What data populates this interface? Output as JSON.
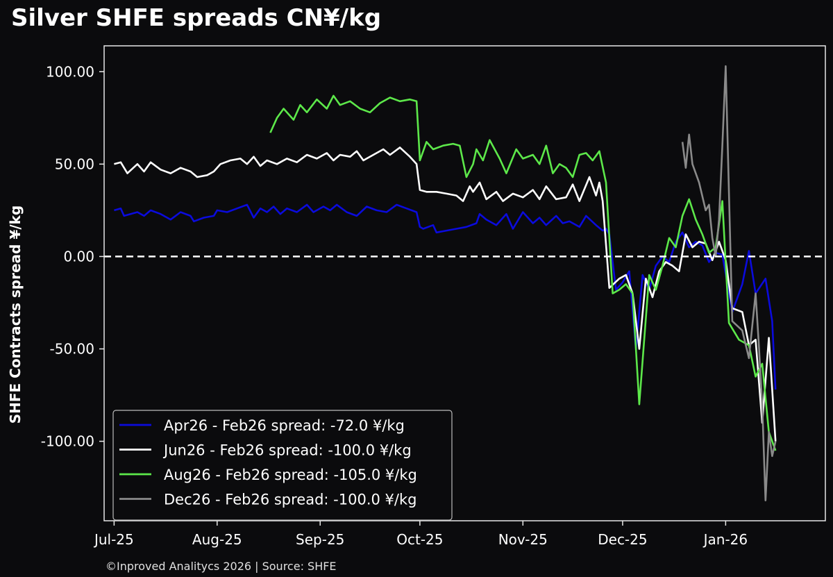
{
  "chart_data": {
    "type": "line",
    "title": "Silver SHFE spreads CN¥/kg",
    "ylabel": "SHFE Contracts spread ¥/kg",
    "xlabel": "",
    "source": "©Inproved Analitycs 2026 | Source: SHFE",
    "x_range": [
      "2025-06-28",
      "2026-01-31"
    ],
    "ylim": [
      -143,
      114
    ],
    "x_ticks": [
      {
        "date": "2025-07-01",
        "label": "Jul-25"
      },
      {
        "date": "2025-08-01",
        "label": "Aug-25"
      },
      {
        "date": "2025-09-01",
        "label": "Sep-25"
      },
      {
        "date": "2025-10-01",
        "label": "Oct-25"
      },
      {
        "date": "2025-11-01",
        "label": "Nov-25"
      },
      {
        "date": "2025-12-01",
        "label": "Dec-25"
      },
      {
        "date": "2026-01-01",
        "label": "Jan-26"
      }
    ],
    "y_ticks": [
      {
        "value": 100,
        "label": "100.00"
      },
      {
        "value": 50,
        "label": "50.00"
      },
      {
        "value": 0,
        "label": "0.00"
      },
      {
        "value": -50,
        "label": "-50.00"
      },
      {
        "value": -100,
        "label": "-100.00"
      }
    ],
    "zero_line": true,
    "grid": false,
    "legend_position": "bottom-left",
    "colors": {
      "background": "#0b0b0d",
      "axes": "#e8e8e8"
    },
    "series": [
      {
        "name": "Apr26 - Feb26 spread: -72.0 ¥/kg",
        "color": "#0b0bdc",
        "points": [
          [
            "2025-07-01",
            25
          ],
          [
            "2025-07-03",
            26
          ],
          [
            "2025-07-04",
            22
          ],
          [
            "2025-07-08",
            24
          ],
          [
            "2025-07-10",
            22
          ],
          [
            "2025-07-12",
            25
          ],
          [
            "2025-07-15",
            23
          ],
          [
            "2025-07-18",
            20
          ],
          [
            "2025-07-21",
            24
          ],
          [
            "2025-07-24",
            22
          ],
          [
            "2025-07-25",
            19
          ],
          [
            "2025-07-28",
            21
          ],
          [
            "2025-07-31",
            22
          ],
          [
            "2025-08-01",
            25
          ],
          [
            "2025-08-04",
            24
          ],
          [
            "2025-08-07",
            26
          ],
          [
            "2025-08-10",
            28
          ],
          [
            "2025-08-12",
            21
          ],
          [
            "2025-08-14",
            26
          ],
          [
            "2025-08-16",
            24
          ],
          [
            "2025-08-18",
            27
          ],
          [
            "2025-08-20",
            23
          ],
          [
            "2025-08-22",
            26
          ],
          [
            "2025-08-25",
            24
          ],
          [
            "2025-08-28",
            28
          ],
          [
            "2025-08-30",
            24
          ],
          [
            "2025-09-02",
            27
          ],
          [
            "2025-09-04",
            25
          ],
          [
            "2025-09-06",
            28
          ],
          [
            "2025-09-09",
            24
          ],
          [
            "2025-09-12",
            22
          ],
          [
            "2025-09-15",
            27
          ],
          [
            "2025-09-18",
            25
          ],
          [
            "2025-09-21",
            24
          ],
          [
            "2025-09-24",
            28
          ],
          [
            "2025-09-27",
            26
          ],
          [
            "2025-09-30",
            24
          ],
          [
            "2025-10-01",
            16
          ],
          [
            "2025-10-02",
            15
          ],
          [
            "2025-10-05",
            17
          ],
          [
            "2025-10-06",
            13
          ],
          [
            "2025-10-09",
            14
          ],
          [
            "2025-10-12",
            15
          ],
          [
            "2025-10-15",
            16
          ],
          [
            "2025-10-18",
            18
          ],
          [
            "2025-10-19",
            23
          ],
          [
            "2025-10-21",
            20
          ],
          [
            "2025-10-24",
            17
          ],
          [
            "2025-10-27",
            23
          ],
          [
            "2025-10-29",
            15
          ],
          [
            "2025-11-01",
            24
          ],
          [
            "2025-11-04",
            18
          ],
          [
            "2025-11-06",
            21
          ],
          [
            "2025-11-08",
            17
          ],
          [
            "2025-11-11",
            22
          ],
          [
            "2025-11-13",
            18
          ],
          [
            "2025-11-15",
            19
          ],
          [
            "2025-11-18",
            16
          ],
          [
            "2025-11-20",
            22
          ],
          [
            "2025-11-23",
            17
          ],
          [
            "2025-11-25",
            14
          ],
          [
            "2025-11-26",
            15
          ],
          [
            "2025-11-27",
            12
          ],
          [
            "2025-11-29",
            -18
          ],
          [
            "2025-12-01",
            -14
          ],
          [
            "2025-12-03",
            -8
          ],
          [
            "2025-12-05",
            -50
          ],
          [
            "2025-12-07",
            -10
          ],
          [
            "2025-12-09",
            -18
          ],
          [
            "2025-12-11",
            -5
          ],
          [
            "2025-12-13",
            0
          ],
          [
            "2025-12-15",
            -3
          ],
          [
            "2025-12-17",
            8
          ],
          [
            "2025-12-19",
            13
          ],
          [
            "2025-12-21",
            5
          ],
          [
            "2025-12-23",
            8
          ],
          [
            "2025-12-25",
            6
          ],
          [
            "2025-12-27",
            -3
          ],
          [
            "2025-12-29",
            2
          ],
          [
            "2025-12-31",
            1
          ],
          [
            "2026-01-03",
            -30
          ],
          [
            "2026-01-06",
            -15
          ],
          [
            "2026-01-08",
            3
          ],
          [
            "2026-01-10",
            -20
          ],
          [
            "2026-01-13",
            -12
          ],
          [
            "2026-01-15",
            -35
          ],
          [
            "2026-01-16",
            -72
          ]
        ]
      },
      {
        "name": "Jun26 - Feb26 spread: -100.0 ¥/kg",
        "color": "#ffffff",
        "points": [
          [
            "2025-07-01",
            50
          ],
          [
            "2025-07-03",
            51
          ],
          [
            "2025-07-05",
            45
          ],
          [
            "2025-07-08",
            50
          ],
          [
            "2025-07-10",
            46
          ],
          [
            "2025-07-12",
            51
          ],
          [
            "2025-07-15",
            47
          ],
          [
            "2025-07-18",
            45
          ],
          [
            "2025-07-21",
            48
          ],
          [
            "2025-07-24",
            46
          ],
          [
            "2025-07-26",
            43
          ],
          [
            "2025-07-29",
            44
          ],
          [
            "2025-07-31",
            46
          ],
          [
            "2025-08-02",
            50
          ],
          [
            "2025-08-05",
            52
          ],
          [
            "2025-08-08",
            53
          ],
          [
            "2025-08-10",
            50
          ],
          [
            "2025-08-12",
            54
          ],
          [
            "2025-08-14",
            49
          ],
          [
            "2025-08-16",
            52
          ],
          [
            "2025-08-19",
            50
          ],
          [
            "2025-08-22",
            53
          ],
          [
            "2025-08-25",
            51
          ],
          [
            "2025-08-28",
            55
          ],
          [
            "2025-08-31",
            53
          ],
          [
            "2025-09-03",
            56
          ],
          [
            "2025-09-05",
            52
          ],
          [
            "2025-09-07",
            55
          ],
          [
            "2025-09-10",
            54
          ],
          [
            "2025-09-12",
            57
          ],
          [
            "2025-09-14",
            52
          ],
          [
            "2025-09-17",
            55
          ],
          [
            "2025-09-20",
            58
          ],
          [
            "2025-09-22",
            55
          ],
          [
            "2025-09-25",
            59
          ],
          [
            "2025-09-28",
            54
          ],
          [
            "2025-09-30",
            50
          ],
          [
            "2025-10-01",
            36
          ],
          [
            "2025-10-03",
            35
          ],
          [
            "2025-10-06",
            35
          ],
          [
            "2025-10-09",
            34
          ],
          [
            "2025-10-12",
            33
          ],
          [
            "2025-10-14",
            30
          ],
          [
            "2025-10-16",
            38
          ],
          [
            "2025-10-17",
            35
          ],
          [
            "2025-10-19",
            40
          ],
          [
            "2025-10-21",
            31
          ],
          [
            "2025-10-24",
            35
          ],
          [
            "2025-10-26",
            30
          ],
          [
            "2025-10-29",
            34
          ],
          [
            "2025-11-01",
            32
          ],
          [
            "2025-11-04",
            36
          ],
          [
            "2025-11-06",
            31
          ],
          [
            "2025-11-08",
            38
          ],
          [
            "2025-11-11",
            31
          ],
          [
            "2025-11-14",
            32
          ],
          [
            "2025-11-16",
            39
          ],
          [
            "2025-11-18",
            30
          ],
          [
            "2025-11-21",
            43
          ],
          [
            "2025-11-23",
            33
          ],
          [
            "2025-11-24",
            40
          ],
          [
            "2025-11-25",
            30
          ],
          [
            "2025-11-27",
            -17
          ],
          [
            "2025-11-30",
            -12
          ],
          [
            "2025-12-02",
            -10
          ],
          [
            "2025-12-04",
            -20
          ],
          [
            "2025-12-06",
            -50
          ],
          [
            "2025-12-08",
            -12
          ],
          [
            "2025-12-10",
            -22
          ],
          [
            "2025-12-12",
            -8
          ],
          [
            "2025-12-14",
            -3
          ],
          [
            "2025-12-16",
            -5
          ],
          [
            "2025-12-18",
            -8
          ],
          [
            "2025-12-20",
            12
          ],
          [
            "2025-12-22",
            5
          ],
          [
            "2025-12-24",
            8
          ],
          [
            "2025-12-26",
            7
          ],
          [
            "2025-12-28",
            -2
          ],
          [
            "2025-12-30",
            8
          ],
          [
            "2026-01-01",
            -2
          ],
          [
            "2026-01-03",
            -28
          ],
          [
            "2026-01-06",
            -30
          ],
          [
            "2026-01-08",
            -48
          ],
          [
            "2026-01-10",
            -45
          ],
          [
            "2026-01-12",
            -90
          ],
          [
            "2026-01-14",
            -44
          ],
          [
            "2026-01-16",
            -100
          ]
        ]
      },
      {
        "name": "Aug26 - Feb26 spread: -105.0 ¥/kg",
        "color": "#5de84a",
        "points": [
          [
            "2025-08-17",
            67
          ],
          [
            "2025-08-19",
            75
          ],
          [
            "2025-08-21",
            80
          ],
          [
            "2025-08-24",
            74
          ],
          [
            "2025-08-26",
            82
          ],
          [
            "2025-08-28",
            78
          ],
          [
            "2025-08-31",
            85
          ],
          [
            "2025-09-03",
            80
          ],
          [
            "2025-09-05",
            87
          ],
          [
            "2025-09-07",
            82
          ],
          [
            "2025-09-10",
            84
          ],
          [
            "2025-09-13",
            80
          ],
          [
            "2025-09-16",
            78
          ],
          [
            "2025-09-19",
            83
          ],
          [
            "2025-09-22",
            86
          ],
          [
            "2025-09-25",
            84
          ],
          [
            "2025-09-28",
            85
          ],
          [
            "2025-09-30",
            84
          ],
          [
            "2025-10-01",
            52
          ],
          [
            "2025-10-03",
            62
          ],
          [
            "2025-10-05",
            58
          ],
          [
            "2025-10-08",
            60
          ],
          [
            "2025-10-11",
            61
          ],
          [
            "2025-10-13",
            60
          ],
          [
            "2025-10-15",
            43
          ],
          [
            "2025-10-17",
            50
          ],
          [
            "2025-10-18",
            58
          ],
          [
            "2025-10-20",
            52
          ],
          [
            "2025-10-22",
            63
          ],
          [
            "2025-10-25",
            53
          ],
          [
            "2025-10-27",
            45
          ],
          [
            "2025-10-30",
            58
          ],
          [
            "2025-11-01",
            53
          ],
          [
            "2025-11-04",
            55
          ],
          [
            "2025-11-06",
            50
          ],
          [
            "2025-11-08",
            60
          ],
          [
            "2025-11-10",
            45
          ],
          [
            "2025-11-12",
            50
          ],
          [
            "2025-11-14",
            48
          ],
          [
            "2025-11-16",
            43
          ],
          [
            "2025-11-18",
            55
          ],
          [
            "2025-11-20",
            56
          ],
          [
            "2025-11-22",
            52
          ],
          [
            "2025-11-24",
            57
          ],
          [
            "2025-11-26",
            40
          ],
          [
            "2025-11-28",
            -20
          ],
          [
            "2025-11-30",
            -18
          ],
          [
            "2025-12-02",
            -15
          ],
          [
            "2025-12-04",
            -20
          ],
          [
            "2025-12-06",
            -80
          ],
          [
            "2025-12-09",
            -10
          ],
          [
            "2025-12-11",
            -18
          ],
          [
            "2025-12-13",
            -5
          ],
          [
            "2025-12-15",
            10
          ],
          [
            "2025-12-17",
            5
          ],
          [
            "2025-12-19",
            22
          ],
          [
            "2025-12-21",
            31
          ],
          [
            "2025-12-23",
            20
          ],
          [
            "2025-12-25",
            12
          ],
          [
            "2025-12-27",
            2
          ],
          [
            "2025-12-29",
            5
          ],
          [
            "2025-12-31",
            30
          ],
          [
            "2026-01-02",
            -36
          ],
          [
            "2026-01-05",
            -45
          ],
          [
            "2026-01-08",
            -48
          ],
          [
            "2026-01-10",
            -65
          ],
          [
            "2026-01-12",
            -58
          ],
          [
            "2026-01-14",
            -95
          ],
          [
            "2026-01-16",
            -105
          ]
        ]
      },
      {
        "name": "Dec26 - Feb26 spread: -100.0 ¥/kg",
        "color": "#8a8a8a",
        "points": [
          [
            "2025-12-19",
            62
          ],
          [
            "2025-12-20",
            48
          ],
          [
            "2025-12-21",
            66
          ],
          [
            "2025-12-22",
            50
          ],
          [
            "2025-12-24",
            40
          ],
          [
            "2025-12-26",
            25
          ],
          [
            "2025-12-27",
            28
          ],
          [
            "2025-12-28",
            10
          ],
          [
            "2025-12-29",
            0
          ],
          [
            "2025-12-30",
            20
          ],
          [
            "2025-12-31",
            60
          ],
          [
            "2026-01-01",
            103
          ],
          [
            "2026-01-03",
            -35
          ],
          [
            "2026-01-06",
            -40
          ],
          [
            "2026-01-08",
            -55
          ],
          [
            "2026-01-10",
            -20
          ],
          [
            "2026-01-11",
            -48
          ],
          [
            "2026-01-12",
            -80
          ],
          [
            "2026-01-13",
            -132
          ],
          [
            "2026-01-14",
            -95
          ],
          [
            "2026-01-15",
            -108
          ],
          [
            "2026-01-16",
            -100
          ]
        ]
      }
    ]
  }
}
